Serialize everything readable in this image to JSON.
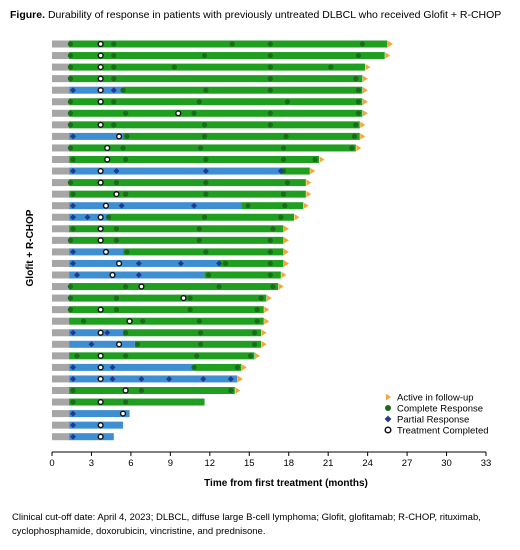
{
  "figure": {
    "label": "Figure.",
    "title": "Durability of response in patients with previously untreated DLBCL who received Glofit + R-CHOP"
  },
  "footnote": "Clinical cut-off date: April 4, 2023; DLBCL, diffuse large B-cell lymphoma; Glofit, glofitamab; R-CHOP, rituximab, cyclophosphamide, doxorubicin, vincristine, and prednisone.",
  "chart_data": {
    "type": "swimmer",
    "xlabel": "Time from first treatment (months)",
    "ylabel": "Glofit + R-CHOP",
    "xlim": [
      0,
      33
    ],
    "xticks": [
      0,
      3,
      6,
      9,
      12,
      15,
      18,
      21,
      24,
      27,
      30,
      33
    ],
    "legend_position": "bottom-right",
    "legend": [
      {
        "key": "active",
        "label": "Active in follow-up"
      },
      {
        "key": "cr",
        "label": "Complete Response"
      },
      {
        "key": "pr",
        "label": "Partial Response"
      },
      {
        "key": "tc",
        "label": "Treatment Completed"
      }
    ],
    "colors": {
      "pre_response": "#a6a6a6",
      "complete_response": "#1f9e1f",
      "partial_response": "#3d8fd1",
      "active_marker": "#f4a83a",
      "cr_marker": "#1a6b1a",
      "pr_marker": "#1f3a93"
    },
    "patients": [
      {
        "end": 25.5,
        "active": true,
        "segments": [
          [
            "gray",
            0,
            1.3
          ],
          [
            "green",
            1.3,
            25.5
          ]
        ],
        "cr": [
          1.4,
          4.7,
          13.7,
          16.6,
          23.6
        ],
        "pr": [],
        "tc": 3.7
      },
      {
        "end": 25.3,
        "active": true,
        "segments": [
          [
            "gray",
            0,
            1.3
          ],
          [
            "green",
            1.3,
            25.3
          ]
        ],
        "cr": [
          1.4,
          4.7,
          11.6,
          16.6,
          23.3
        ],
        "pr": [],
        "tc": 3.7
      },
      {
        "end": 23.8,
        "active": true,
        "segments": [
          [
            "gray",
            0,
            1.3
          ],
          [
            "green",
            1.3,
            23.8
          ]
        ],
        "cr": [
          1.4,
          4.7,
          9.3,
          16.6,
          21.2
        ],
        "pr": [],
        "tc": 3.7
      },
      {
        "end": 23.6,
        "active": true,
        "segments": [
          [
            "gray",
            0,
            1.3
          ],
          [
            "green",
            1.3,
            23.6
          ]
        ],
        "cr": [
          1.4,
          4.7,
          16.6,
          23.1
        ],
        "pr": [],
        "tc": 3.7
      },
      {
        "end": 23.6,
        "active": true,
        "segments": [
          [
            "gray",
            0,
            1.3
          ],
          [
            "blue",
            1.3,
            5.4
          ],
          [
            "green",
            5.4,
            23.6
          ]
        ],
        "cr": [
          5.4,
          11.7,
          16.6,
          23.3
        ],
        "pr": [
          1.6,
          4.7
        ],
        "tc": 3.7
      },
      {
        "end": 23.6,
        "active": true,
        "segments": [
          [
            "gray",
            0,
            1.3
          ],
          [
            "green",
            1.3,
            23.6
          ]
        ],
        "cr": [
          1.4,
          4.7,
          11.2,
          17.9,
          23.3
        ],
        "pr": [],
        "tc": 3.7
      },
      {
        "end": 23.6,
        "active": true,
        "segments": [
          [
            "gray",
            0,
            1.3
          ],
          [
            "green",
            1.3,
            23.6
          ]
        ],
        "cr": [
          1.4,
          5.6,
          10.8,
          16.6,
          23.3
        ],
        "pr": [],
        "tc": 9.6
      },
      {
        "end": 23.4,
        "active": true,
        "segments": [
          [
            "gray",
            0,
            1.3
          ],
          [
            "green",
            1.3,
            23.4
          ]
        ],
        "cr": [
          1.4,
          4.7,
          11.6,
          16.6,
          23.1
        ],
        "pr": [],
        "tc": 3.7
      },
      {
        "end": 23.4,
        "active": true,
        "segments": [
          [
            "gray",
            0,
            1.3
          ],
          [
            "blue",
            1.3,
            5.4
          ],
          [
            "green",
            5.4,
            23.4
          ]
        ],
        "cr": [
          5.7,
          11.6,
          17.8,
          23.0
        ],
        "pr": [
          1.6
        ],
        "tc": 5.1
      },
      {
        "end": 23.1,
        "active": true,
        "segments": [
          [
            "gray",
            0,
            1.3
          ],
          [
            "green",
            1.3,
            23.1
          ]
        ],
        "cr": [
          1.4,
          5.4,
          11.3,
          17.6,
          22.8
        ],
        "pr": [],
        "tc": 4.2
      },
      {
        "end": 20.3,
        "active": true,
        "segments": [
          [
            "gray",
            0,
            1.3
          ],
          [
            "green",
            1.3,
            20.3
          ]
        ],
        "cr": [
          1.6,
          5.6,
          11.7,
          17.6,
          20.0
        ],
        "pr": [],
        "tc": 4.2
      },
      {
        "end": 19.6,
        "active": true,
        "segments": [
          [
            "gray",
            0,
            1.3
          ],
          [
            "blue",
            1.3,
            17.4
          ],
          [
            "green",
            17.4,
            19.6
          ]
        ],
        "cr": [
          17.6
        ],
        "pr": [
          1.6,
          4.9,
          11.7,
          17.4
        ],
        "tc": 3.7
      },
      {
        "end": 19.3,
        "active": true,
        "segments": [
          [
            "gray",
            0,
            1.3
          ],
          [
            "green",
            1.3,
            19.3
          ]
        ],
        "cr": [
          1.4,
          4.9,
          11.7,
          17.9
        ],
        "pr": [],
        "tc": 3.7
      },
      {
        "end": 19.3,
        "active": true,
        "segments": [
          [
            "gray",
            0,
            1.3
          ],
          [
            "green",
            1.3,
            19.3
          ]
        ],
        "cr": [
          1.6,
          5.6,
          11.7,
          17.6
        ],
        "pr": [],
        "tc": 4.9
      },
      {
        "end": 19.1,
        "active": true,
        "segments": [
          [
            "gray",
            0,
            1.3
          ],
          [
            "blue",
            1.3,
            14.4
          ],
          [
            "green",
            14.4,
            19.1
          ]
        ],
        "cr": [
          14.9,
          17.7
        ],
        "pr": [
          1.6,
          5.3,
          10.8
        ],
        "tc": 4.1
      },
      {
        "end": 18.4,
        "active": true,
        "segments": [
          [
            "gray",
            0,
            1.3
          ],
          [
            "blue",
            1.3,
            4.3
          ],
          [
            "green",
            4.3,
            18.4
          ]
        ],
        "cr": [
          4.3,
          11.6,
          17.4
        ],
        "pr": [
          1.6,
          2.7
        ],
        "tc": 3.7
      },
      {
        "end": 17.6,
        "active": true,
        "segments": [
          [
            "gray",
            0,
            1.3
          ],
          [
            "green",
            1.3,
            17.6
          ]
        ],
        "cr": [
          1.6,
          4.9,
          11.2,
          16.8
        ],
        "pr": [],
        "tc": 3.7
      },
      {
        "end": 17.6,
        "active": true,
        "segments": [
          [
            "gray",
            0,
            1.3
          ],
          [
            "green",
            1.3,
            17.6
          ]
        ],
        "cr": [
          1.4,
          4.9,
          11.2,
          16.6
        ],
        "pr": [],
        "tc": 3.7
      },
      {
        "end": 17.6,
        "active": true,
        "segments": [
          [
            "gray",
            0,
            1.3
          ],
          [
            "blue",
            1.3,
            5.4
          ],
          [
            "green",
            5.4,
            17.6
          ]
        ],
        "cr": [
          5.7,
          11.7,
          16.6
        ],
        "pr": [
          1.6
        ],
        "tc": 4.1
      },
      {
        "end": 17.6,
        "active": true,
        "segments": [
          [
            "gray",
            0,
            1.3
          ],
          [
            "blue",
            1.3,
            12.7
          ],
          [
            "green",
            12.7,
            17.6
          ]
        ],
        "cr": [
          13.2,
          16.6
        ],
        "pr": [
          1.6,
          6.6,
          9.8,
          12.7
        ],
        "tc": 5.1
      },
      {
        "end": 17.4,
        "active": true,
        "segments": [
          [
            "gray",
            0,
            1.3
          ],
          [
            "blue",
            1.3,
            11.6
          ],
          [
            "green",
            11.6,
            17.4
          ]
        ],
        "cr": [
          11.9,
          16.6
        ],
        "pr": [
          1.9,
          6.6
        ],
        "tc": 4.6
      },
      {
        "end": 17.2,
        "active": true,
        "segments": [
          [
            "gray",
            0,
            1.3
          ],
          [
            "green",
            1.3,
            17.2
          ]
        ],
        "cr": [
          1.4,
          5.6,
          12.7,
          16.8
        ],
        "pr": [],
        "tc": 6.8
      },
      {
        "end": 16.3,
        "active": true,
        "segments": [
          [
            "gray",
            0,
            1.3
          ],
          [
            "green",
            1.3,
            16.3
          ]
        ],
        "cr": [
          1.4,
          4.9,
          10.5,
          15.9
        ],
        "pr": [],
        "tc": 10.0
      },
      {
        "end": 16.1,
        "active": true,
        "segments": [
          [
            "gray",
            0,
            1.3
          ],
          [
            "green",
            1.3,
            16.1
          ]
        ],
        "cr": [
          1.4,
          4.9,
          10.5,
          15.6
        ],
        "pr": [],
        "tc": 3.7
      },
      {
        "end": 16.1,
        "active": true,
        "segments": [
          [
            "gray",
            0,
            1.3
          ],
          [
            "green",
            1.3,
            16.1
          ]
        ],
        "cr": [
          2.4,
          6.9,
          11.2,
          15.6
        ],
        "pr": [],
        "tc": 5.9
      },
      {
        "end": 15.9,
        "active": true,
        "segments": [
          [
            "gray",
            0,
            1.3
          ],
          [
            "blue",
            1.3,
            5.4
          ],
          [
            "green",
            5.4,
            15.9
          ]
        ],
        "cr": [
          5.6,
          11.3,
          15.4
        ],
        "pr": [
          1.6,
          4.2
        ],
        "tc": 3.7
      },
      {
        "end": 15.9,
        "active": true,
        "segments": [
          [
            "gray",
            0,
            1.3
          ],
          [
            "blue",
            1.3,
            6.3
          ],
          [
            "green",
            6.3,
            15.9
          ]
        ],
        "cr": [
          6.5,
          11.3,
          15.4
        ],
        "pr": [
          3.0
        ],
        "tc": 5.1
      },
      {
        "end": 15.4,
        "active": true,
        "segments": [
          [
            "gray",
            0,
            1.3
          ],
          [
            "green",
            1.3,
            15.4
          ]
        ],
        "cr": [
          1.9,
          5.6,
          11.0,
          15.1
        ],
        "pr": [],
        "tc": 3.7
      },
      {
        "end": 14.4,
        "active": true,
        "segments": [
          [
            "gray",
            0,
            1.3
          ],
          [
            "blue",
            1.3,
            10.8
          ],
          [
            "green",
            10.8,
            14.4
          ]
        ],
        "cr": [
          10.8,
          14.1
        ],
        "pr": [
          1.6,
          4.6
        ],
        "tc": 3.7
      },
      {
        "end": 14.1,
        "active": true,
        "segments": [
          [
            "gray",
            0,
            1.3
          ],
          [
            "blue",
            1.3,
            14.1
          ]
        ],
        "cr": [],
        "pr": [
          1.6,
          4.6,
          6.8,
          8.9,
          11.5,
          13.6
        ],
        "tc": 3.7
      },
      {
        "end": 13.9,
        "active": true,
        "segments": [
          [
            "gray",
            0,
            1.3
          ],
          [
            "green",
            1.3,
            13.9
          ]
        ],
        "cr": [
          1.6,
          6.8,
          13.6
        ],
        "pr": [],
        "tc": 5.6
      },
      {
        "end": 11.6,
        "active": false,
        "segments": [
          [
            "gray",
            0,
            1.3
          ],
          [
            "green",
            1.3,
            11.6
          ]
        ],
        "cr": [
          1.6,
          5.6
        ],
        "pr": [],
        "tc": 3.7
      },
      {
        "end": 5.9,
        "active": false,
        "segments": [
          [
            "gray",
            0,
            1.3
          ],
          [
            "blue",
            1.3,
            5.9
          ]
        ],
        "cr": [],
        "pr": [
          1.6
        ],
        "tc": 5.4
      },
      {
        "end": 5.4,
        "active": false,
        "segments": [
          [
            "gray",
            0,
            1.3
          ],
          [
            "blue",
            1.3,
            5.4
          ]
        ],
        "cr": [],
        "pr": [
          1.6
        ],
        "tc": 3.7
      },
      {
        "end": 4.7,
        "active": false,
        "segments": [
          [
            "gray",
            0,
            1.3
          ],
          [
            "blue",
            1.3,
            4.7
          ]
        ],
        "cr": [],
        "pr": [
          1.6
        ],
        "tc": 3.7
      }
    ]
  }
}
